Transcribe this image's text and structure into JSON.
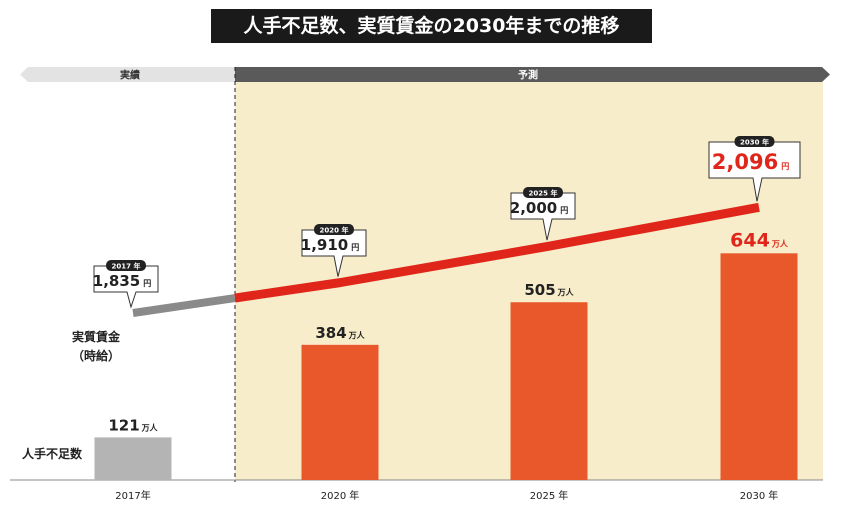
{
  "title": "人手不足数、実質賃金の2030年までの推移",
  "period_labels": {
    "actual": "実績",
    "forecast": "予測"
  },
  "row_labels": {
    "wage_line1": "実質賃金",
    "wage_line2": "（時給）",
    "shortage": "人手不足数"
  },
  "units": {
    "persons": "万人",
    "yen": "円",
    "year_suffix": "年"
  },
  "colors": {
    "actual_bar": "#b4b4b4",
    "forecast_bar": "#e8582a",
    "actual_line": "#8a8a8a",
    "forecast_line": "#e0261b",
    "forecast_bg": "#f8edca",
    "highlight_text": "#e0261b"
  },
  "chart_data": {
    "type": "bar",
    "categories": [
      "2017年",
      "2020年",
      "2025年",
      "2030年"
    ],
    "series": [
      {
        "name": "人手不足数",
        "unit": "万人",
        "values": [
          121,
          384,
          505,
          644
        ]
      },
      {
        "name": "実質賃金（時給）",
        "unit": "円",
        "type": "line",
        "values": [
          1835,
          1910,
          2000,
          2096
        ],
        "callout_labels": [
          "2017 年",
          "2020 年",
          "2025 年",
          "2030 年"
        ],
        "value_labels": [
          "1,835",
          "1,910",
          "2,000",
          "2,096"
        ]
      }
    ],
    "bar_value_labels": [
      "121",
      "384",
      "505",
      "644"
    ],
    "shaded_region": "2020年–2030年 (予測)"
  }
}
